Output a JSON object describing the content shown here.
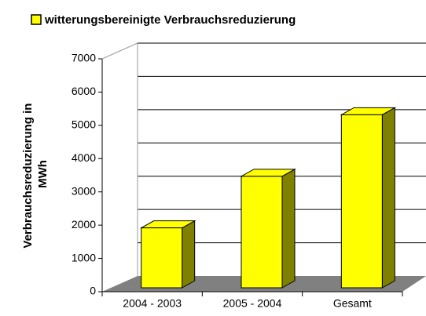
{
  "chart_data": {
    "type": "bar3d",
    "categories": [
      "2004 - 2003",
      "2005 - 2004",
      "Gesamt"
    ],
    "series": [
      {
        "name": "witterungsbereinigte Verbrauchsreduzierung",
        "color": "#ffff00",
        "values": [
          1800,
          3350,
          5200
        ]
      }
    ],
    "y_label": "Verbrauchsreduzierung in MWh",
    "ylim": [
      0,
      7000
    ],
    "yticks": [
      0,
      1000,
      2000,
      3000,
      4000,
      5000,
      6000,
      7000
    ],
    "grid": true
  }
}
